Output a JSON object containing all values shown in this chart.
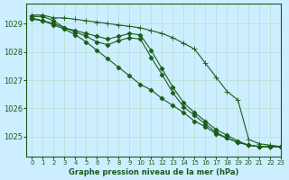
{
  "background_color": "#cceeff",
  "grid_color": "#b8ddd0",
  "line_color": "#1a5c1a",
  "title": "Graphe pression niveau de la mer (hPa)",
  "xlim": [
    -0.5,
    23
  ],
  "ylim": [
    1024.3,
    1029.7
  ],
  "yticks": [
    1025,
    1026,
    1027,
    1028,
    1029
  ],
  "xticks": [
    0,
    1,
    2,
    3,
    4,
    5,
    6,
    7,
    8,
    9,
    10,
    11,
    12,
    13,
    14,
    15,
    16,
    17,
    18,
    19,
    20,
    21,
    22,
    23
  ],
  "series": [
    {
      "x": [
        0,
        1,
        2,
        3,
        4,
        5,
        6,
        7,
        8,
        9,
        10,
        11,
        12,
        13,
        14,
        15,
        16,
        17,
        18,
        19,
        20,
        21,
        22,
        23
      ],
      "y": [
        1029.3,
        1029.3,
        1029.2,
        1029.2,
        1029.15,
        1029.1,
        1029.05,
        1029.0,
        1028.95,
        1028.9,
        1028.85,
        1028.75,
        1028.65,
        1028.5,
        1028.3,
        1028.1,
        1027.6,
        1027.1,
        1026.6,
        1026.3,
        1024.9,
        1024.75,
        1024.7,
        1024.65
      ],
      "marker": "+",
      "markersize": 4,
      "linewidth": 0.8
    },
    {
      "x": [
        0,
        1,
        2,
        3,
        4,
        5,
        6,
        7,
        8,
        9,
        10,
        11,
        12,
        13,
        14,
        15,
        16,
        17,
        18,
        19,
        20,
        21,
        22,
        23
      ],
      "y": [
        1029.25,
        1029.25,
        1029.1,
        1028.85,
        1028.75,
        1028.65,
        1028.55,
        1028.45,
        1028.55,
        1028.65,
        1028.6,
        1028.05,
        1027.4,
        1026.75,
        1026.2,
        1025.85,
        1025.55,
        1025.25,
        1025.05,
        1024.85,
        1024.7,
        1024.65,
        1024.65,
        1024.65
      ],
      "marker": "D",
      "markersize": 2.5,
      "linewidth": 0.8
    },
    {
      "x": [
        0,
        1,
        2,
        3,
        4,
        5,
        6,
        7,
        8,
        9,
        10,
        11,
        12,
        13,
        14,
        15,
        16,
        17,
        18,
        19,
        20,
        21,
        22,
        23
      ],
      "y": [
        1029.2,
        1029.1,
        1029.0,
        1028.85,
        1028.7,
        1028.55,
        1028.35,
        1028.25,
        1028.4,
        1028.5,
        1028.45,
        1027.8,
        1027.2,
        1026.55,
        1026.05,
        1025.75,
        1025.45,
        1025.15,
        1024.95,
        1024.8,
        1024.7,
        1024.65,
        1024.65,
        1024.65
      ],
      "marker": "D",
      "markersize": 2.5,
      "linewidth": 0.8
    },
    {
      "x": [
        0,
        1,
        2,
        3,
        4,
        5,
        6,
        7,
        8,
        9,
        10,
        11,
        12,
        13,
        14,
        15,
        16,
        17,
        18,
        19,
        20,
        21,
        22,
        23
      ],
      "y": [
        1029.15,
        1029.1,
        1028.95,
        1028.8,
        1028.6,
        1028.35,
        1028.05,
        1027.75,
        1027.45,
        1027.15,
        1026.85,
        1026.65,
        1026.35,
        1026.1,
        1025.85,
        1025.55,
        1025.35,
        1025.1,
        1024.95,
        1024.8,
        1024.7,
        1024.65,
        1024.65,
        1024.65
      ],
      "marker": "D",
      "markersize": 2.5,
      "linewidth": 0.8
    }
  ]
}
